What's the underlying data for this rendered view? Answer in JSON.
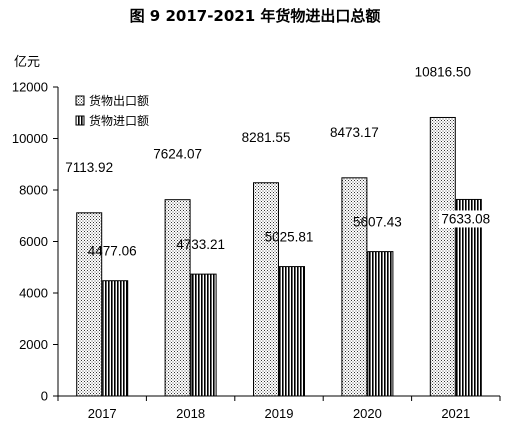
{
  "chart_data": {
    "type": "bar",
    "title": "图 9    2017-2021 年货物进出口总额",
    "ylabel": "亿元",
    "xlabel": "",
    "ylim": [
      0,
      12000
    ],
    "yticks": [
      0,
      2000,
      4000,
      6000,
      8000,
      10000,
      12000
    ],
    "categories": [
      "2017",
      "2018",
      "2019",
      "2020",
      "2021"
    ],
    "series": [
      {
        "name": "货物出口额",
        "values": [
          7113.92,
          7624.07,
          8281.55,
          8473.17,
          10816.5
        ],
        "labels": [
          "7113.92",
          "7624.07",
          "8281.55",
          "8473.17",
          "10816.50"
        ],
        "fill": "dotted"
      },
      {
        "name": "货物进口额",
        "values": [
          4477.06,
          4733.21,
          5025.81,
          5607.43,
          7633.08
        ],
        "labels": [
          "4477.06",
          "4733.21",
          "5025.81",
          "5607.43",
          "7633.08"
        ],
        "fill": "vertical-stripes"
      }
    ],
    "legend_position": "top-left",
    "grid": false
  }
}
